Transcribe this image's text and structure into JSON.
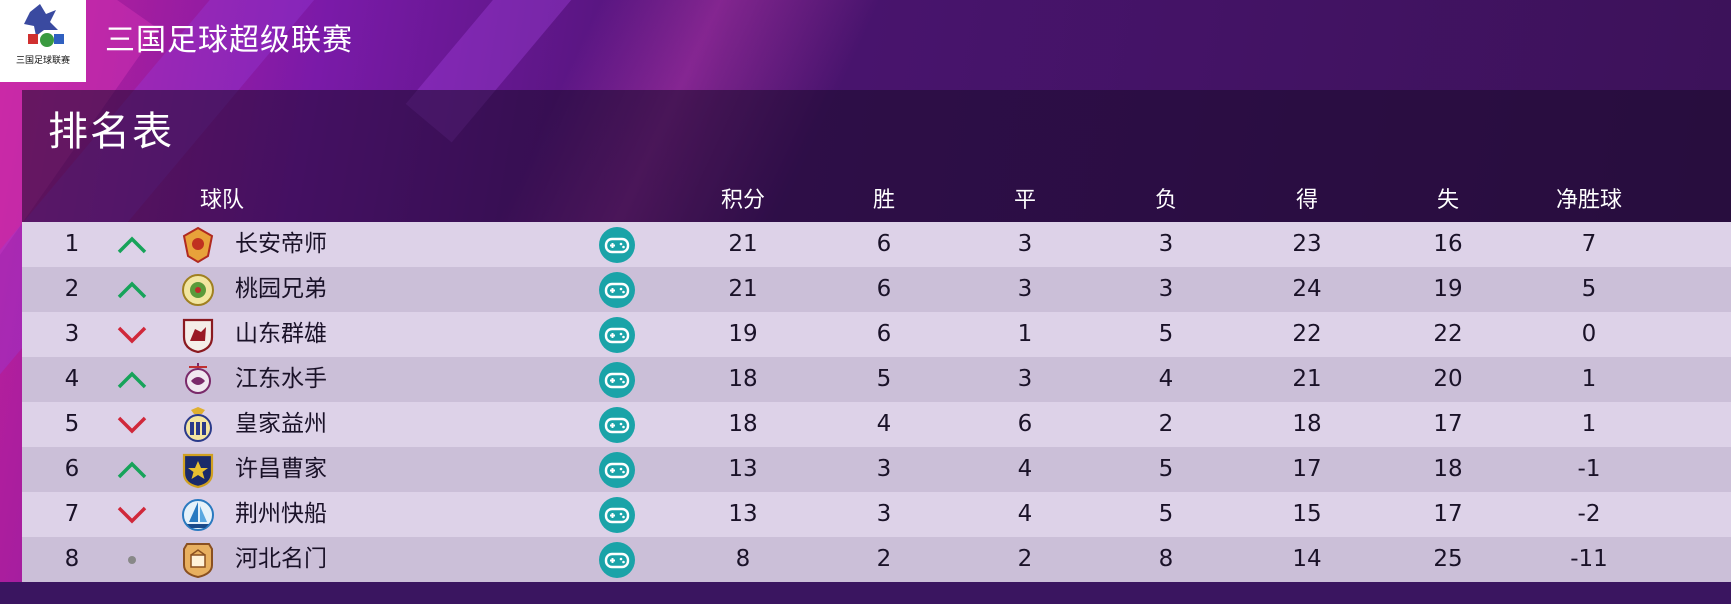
{
  "header": {
    "league_title": "三国足球超级联赛",
    "logo_text": "三国足球联赛"
  },
  "panel": {
    "title": "排名表",
    "columns": {
      "team": "球队",
      "points": "积分",
      "wins": "胜",
      "draws": "平",
      "losses": "负",
      "goals_for": "得",
      "goals_against": "失",
      "goal_diff": "净胜球"
    }
  },
  "colors": {
    "trend_up": "#17a35a",
    "trend_down": "#d0283a",
    "trend_same": "#888888",
    "game_icon_bg": "#1aa3a8"
  },
  "standings": [
    {
      "rank": "1",
      "trend": "up",
      "crest": "crest-changan",
      "team": "长安帝师",
      "points": "21",
      "wins": "6",
      "draws": "3",
      "losses": "3",
      "goals_for": "23",
      "goals_against": "16",
      "goal_diff": "7"
    },
    {
      "rank": "2",
      "trend": "up",
      "crest": "crest-taoyuan",
      "team": "桃园兄弟",
      "points": "21",
      "wins": "6",
      "draws": "3",
      "losses": "3",
      "goals_for": "24",
      "goals_against": "19",
      "goal_diff": "5"
    },
    {
      "rank": "3",
      "trend": "down",
      "crest": "crest-shandong",
      "team": "山东群雄",
      "points": "19",
      "wins": "6",
      "draws": "1",
      "losses": "5",
      "goals_for": "22",
      "goals_against": "22",
      "goal_diff": "0"
    },
    {
      "rank": "4",
      "trend": "up",
      "crest": "crest-jiangdong",
      "team": "江东水手",
      "points": "18",
      "wins": "5",
      "draws": "3",
      "losses": "4",
      "goals_for": "21",
      "goals_against": "20",
      "goal_diff": "1"
    },
    {
      "rank": "5",
      "trend": "down",
      "crest": "crest-yizhou",
      "team": "皇家益州",
      "points": "18",
      "wins": "4",
      "draws": "6",
      "losses": "2",
      "goals_for": "18",
      "goals_against": "17",
      "goal_diff": "1"
    },
    {
      "rank": "6",
      "trend": "up",
      "crest": "crest-xuchang",
      "team": "许昌曹家",
      "points": "13",
      "wins": "3",
      "draws": "4",
      "losses": "5",
      "goals_for": "17",
      "goals_against": "18",
      "goal_diff": "-1"
    },
    {
      "rank": "7",
      "trend": "down",
      "crest": "crest-jingzhou",
      "team": "荆州快船",
      "points": "13",
      "wins": "3",
      "draws": "4",
      "losses": "5",
      "goals_for": "15",
      "goals_against": "17",
      "goal_diff": "-2"
    },
    {
      "rank": "8",
      "trend": "same",
      "crest": "crest-hebei",
      "team": "河北名门",
      "points": "8",
      "wins": "2",
      "draws": "2",
      "losses": "8",
      "goals_for": "14",
      "goals_against": "25",
      "goal_diff": "-11"
    }
  ]
}
